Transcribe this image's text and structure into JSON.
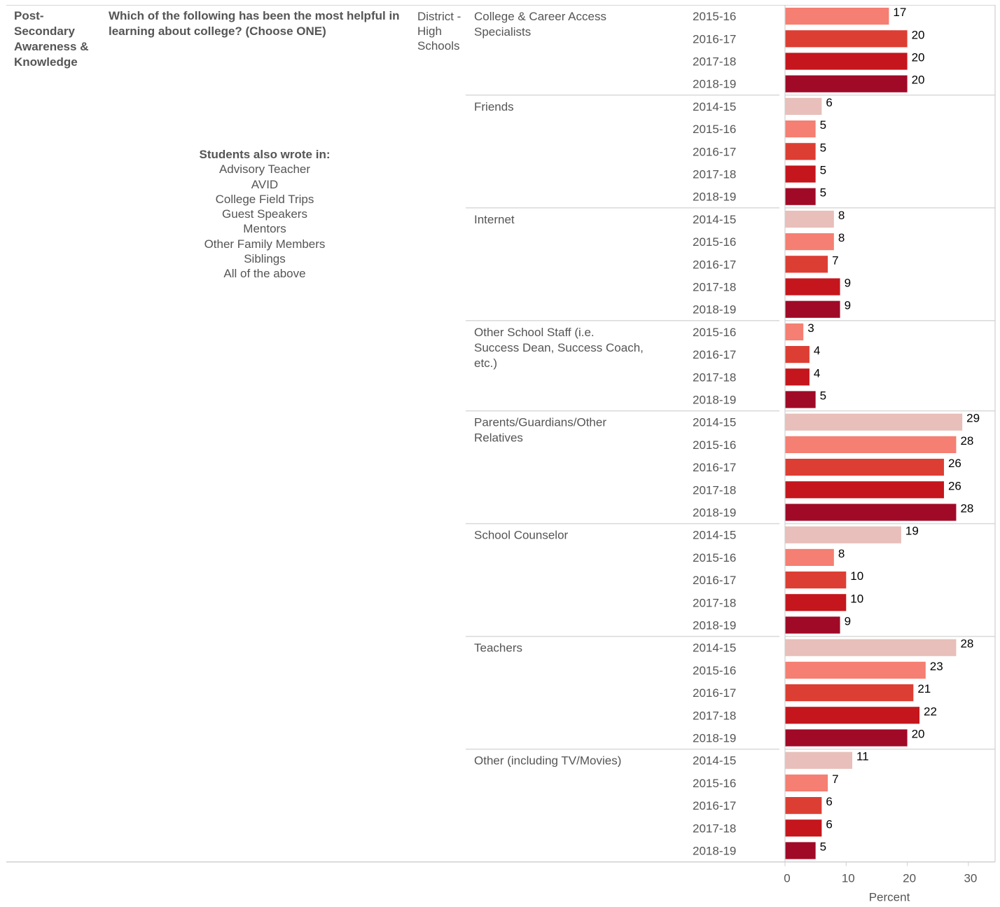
{
  "header": {
    "section": "Post-Secondary Awareness & Knowledge",
    "question": "Which of the following has been the most helpful in learning about college? (Choose ONE)",
    "group": "District - High Schools"
  },
  "note": {
    "title": "Students also wrote in:",
    "items": [
      "Advisory Teacher",
      "AVID",
      "College Field Trips",
      "Guest Speakers",
      "Mentors",
      "Other Family Members",
      "Siblings",
      "All of the above"
    ]
  },
  "colors": {
    "2014-15": "#e8bfba",
    "2015-16": "#f47f72",
    "2016-17": "#dd3e33",
    "2017-18": "#c4161c",
    "2018-19": "#a00a27"
  },
  "chart_data": {
    "type": "bar",
    "orientation": "horizontal",
    "xlabel": "Percent",
    "xlim": [
      0,
      33
    ],
    "xticks": [
      0,
      10,
      20,
      30
    ],
    "grid": false,
    "groups": [
      {
        "category": "College & Career Access Specialists",
        "rows": [
          {
            "year": "2015-16",
            "value": 17
          },
          {
            "year": "2016-17",
            "value": 20
          },
          {
            "year": "2017-18",
            "value": 20
          },
          {
            "year": "2018-19",
            "value": 20
          }
        ]
      },
      {
        "category": "Friends",
        "rows": [
          {
            "year": "2014-15",
            "value": 6
          },
          {
            "year": "2015-16",
            "value": 5
          },
          {
            "year": "2016-17",
            "value": 5
          },
          {
            "year": "2017-18",
            "value": 5
          },
          {
            "year": "2018-19",
            "value": 5
          }
        ]
      },
      {
        "category": "Internet",
        "rows": [
          {
            "year": "2014-15",
            "value": 8
          },
          {
            "year": "2015-16",
            "value": 8
          },
          {
            "year": "2016-17",
            "value": 7
          },
          {
            "year": "2017-18",
            "value": 9
          },
          {
            "year": "2018-19",
            "value": 9
          }
        ]
      },
      {
        "category": "Other School Staff (i.e. Success Dean, Success Coach, etc.)",
        "rows": [
          {
            "year": "2015-16",
            "value": 3
          },
          {
            "year": "2016-17",
            "value": 4
          },
          {
            "year": "2017-18",
            "value": 4
          },
          {
            "year": "2018-19",
            "value": 5
          }
        ]
      },
      {
        "category": "Parents/Guardians/Other Relatives",
        "rows": [
          {
            "year": "2014-15",
            "value": 29
          },
          {
            "year": "2015-16",
            "value": 28
          },
          {
            "year": "2016-17",
            "value": 26
          },
          {
            "year": "2017-18",
            "value": 26
          },
          {
            "year": "2018-19",
            "value": 28
          }
        ]
      },
      {
        "category": "School Counselor",
        "rows": [
          {
            "year": "2014-15",
            "value": 19
          },
          {
            "year": "2015-16",
            "value": 8
          },
          {
            "year": "2016-17",
            "value": 10
          },
          {
            "year": "2017-18",
            "value": 10
          },
          {
            "year": "2018-19",
            "value": 9
          }
        ]
      },
      {
        "category": "Teachers",
        "rows": [
          {
            "year": "2014-15",
            "value": 28
          },
          {
            "year": "2015-16",
            "value": 23
          },
          {
            "year": "2016-17",
            "value": 21
          },
          {
            "year": "2017-18",
            "value": 22
          },
          {
            "year": "2018-19",
            "value": 20
          }
        ]
      },
      {
        "category": "Other (including TV/Movies)",
        "rows": [
          {
            "year": "2014-15",
            "value": 11
          },
          {
            "year": "2015-16",
            "value": 7
          },
          {
            "year": "2016-17",
            "value": 6
          },
          {
            "year": "2017-18",
            "value": 6
          },
          {
            "year": "2018-19",
            "value": 5
          }
        ]
      }
    ]
  }
}
